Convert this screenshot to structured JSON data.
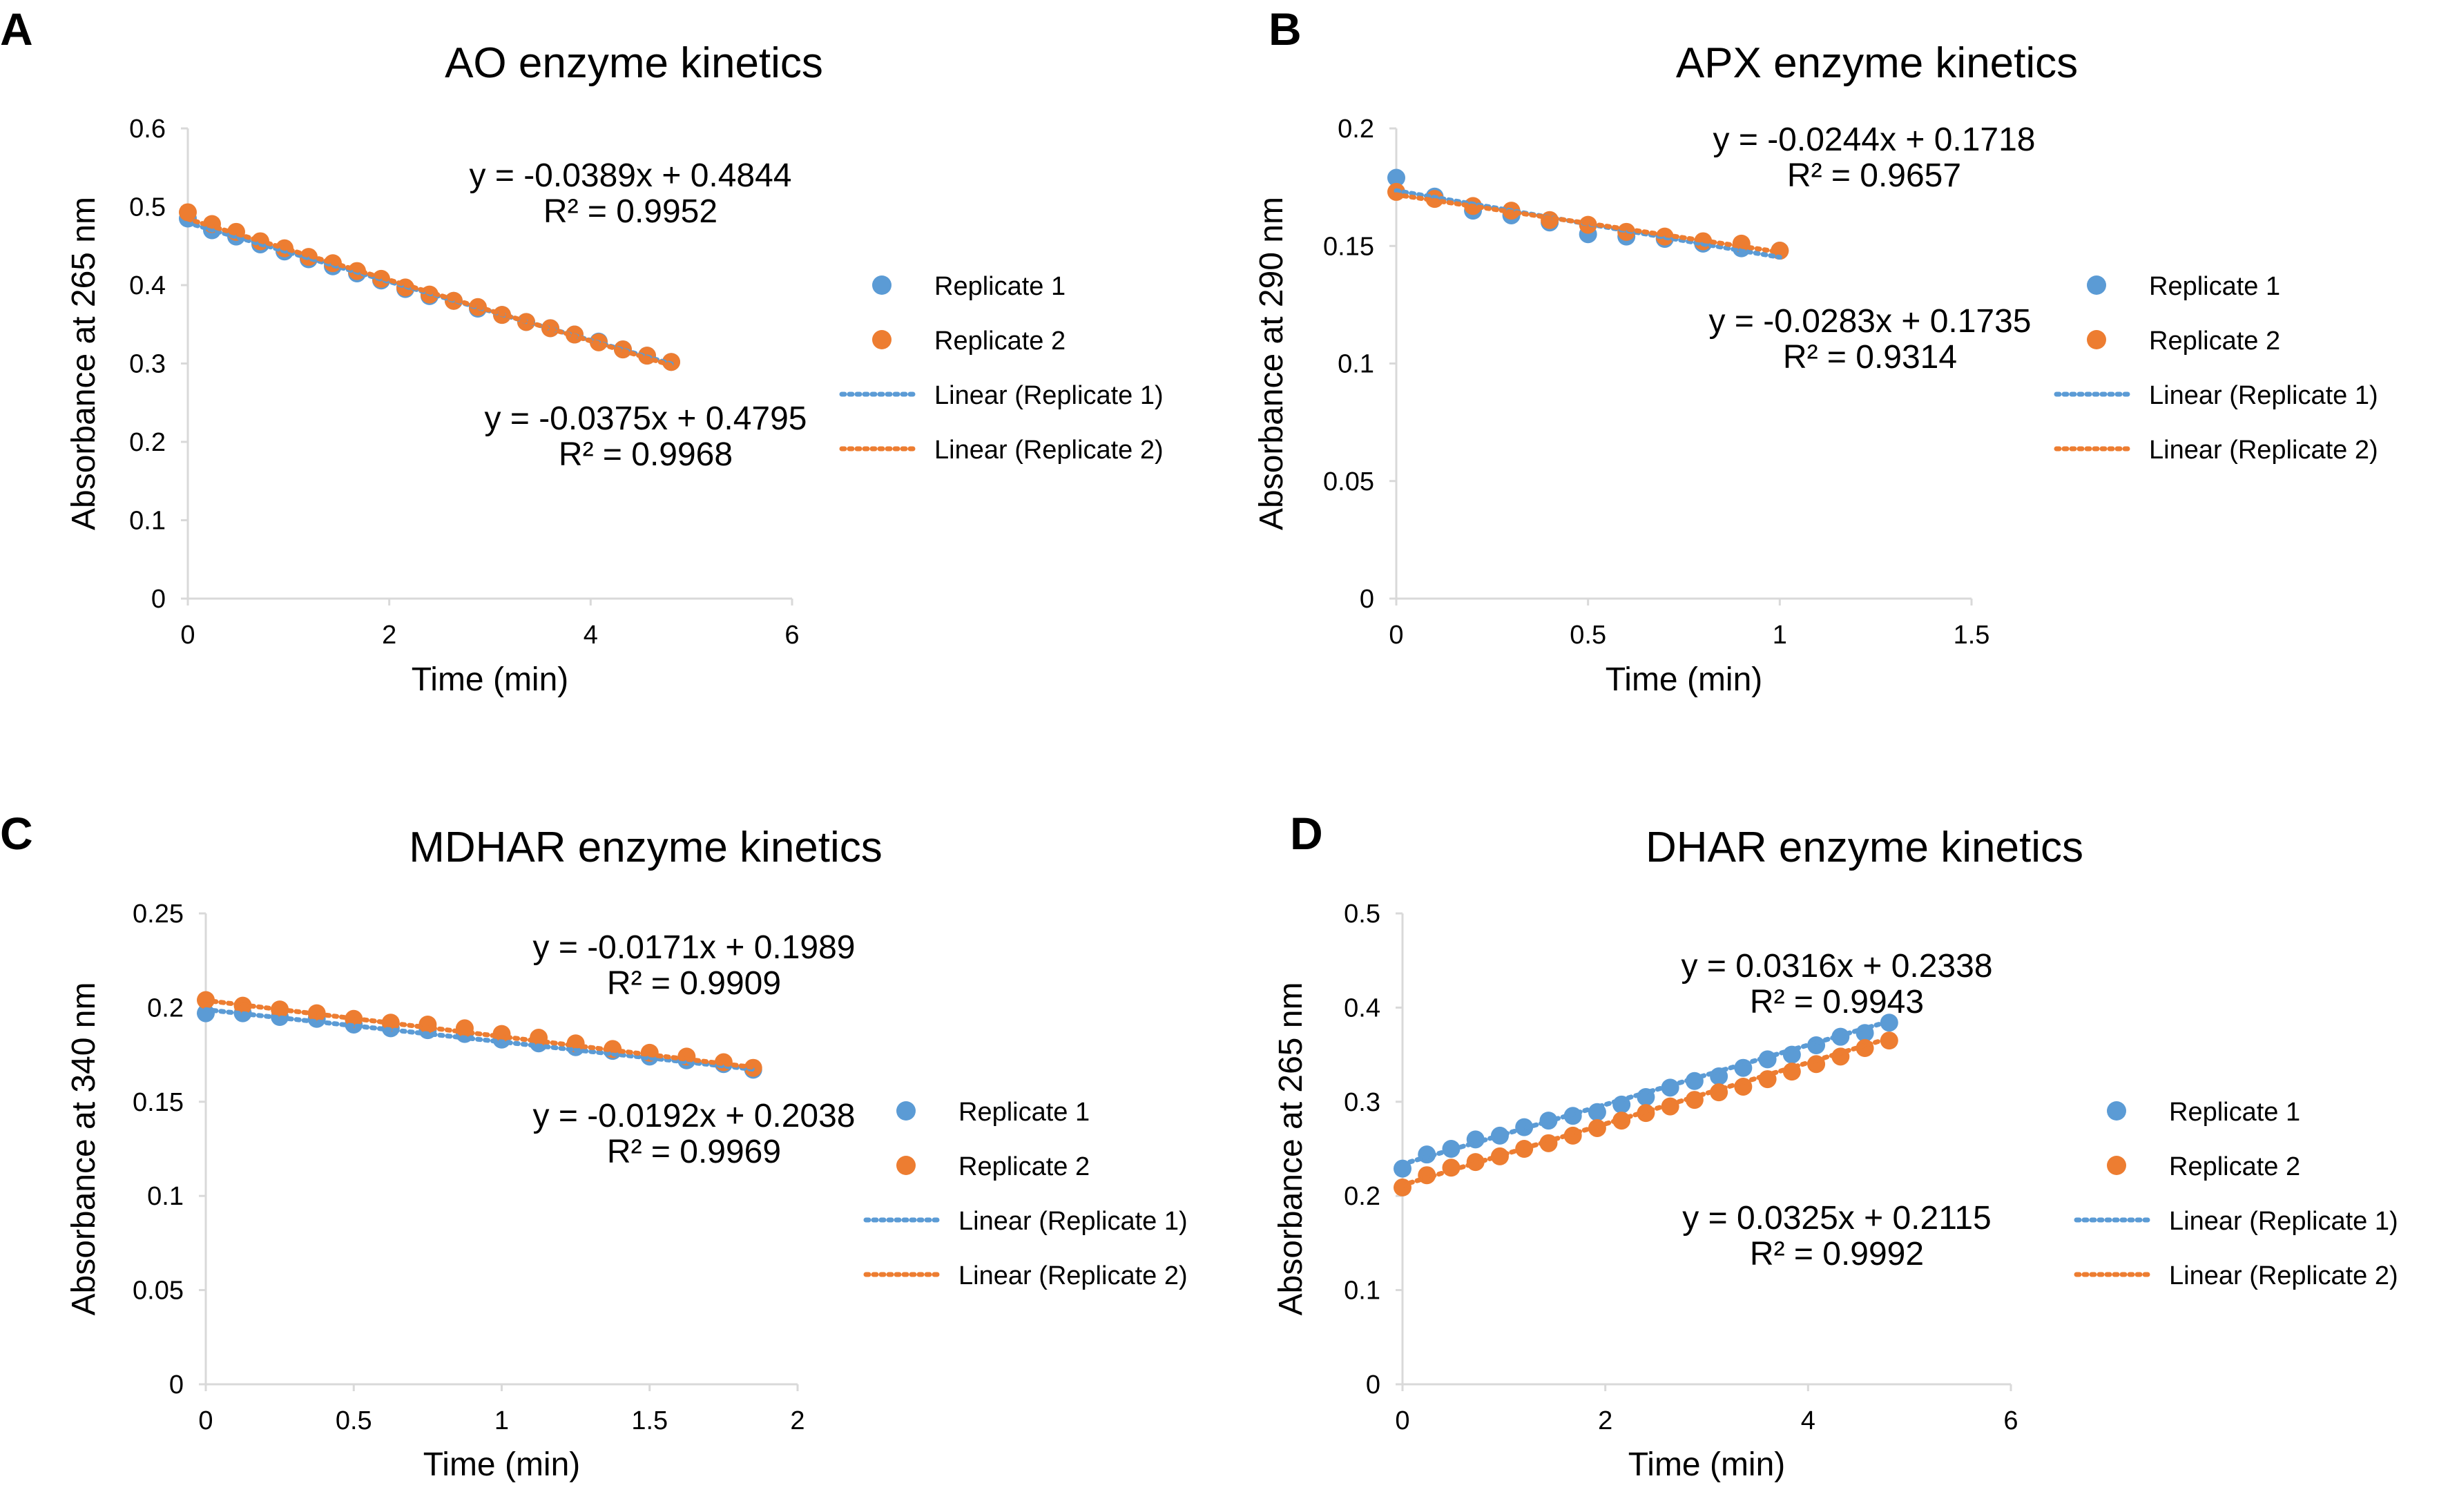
{
  "colors": {
    "replicate_1": "#5b9bd5",
    "replicate_2": "#ed7d31",
    "axis": "#d9d9d9"
  },
  "chart_data": [
    {
      "panel": "A",
      "type": "scatter",
      "title": "AO enzyme kinetics",
      "xlabel": "Time (min)",
      "ylabel": "Absorbance at 265 nm",
      "xlim": [
        0,
        6
      ],
      "ylim": [
        0,
        0.6
      ],
      "xticks": [
        "0",
        "2",
        "4",
        "6"
      ],
      "yticks": [
        "0",
        "0.1",
        "0.2",
        "0.3",
        "0.4",
        "0.5",
        "0.6"
      ],
      "grid": false,
      "legend_position": "right",
      "legend": [
        "Replicate 1",
        "Replicate 2",
        "Linear (Replicate 1)",
        "Linear (Replicate 2)"
      ],
      "series": [
        {
          "name": "Replicate 1",
          "trendline": "Linear (Replicate 1)",
          "slope": -0.0375,
          "intercept": 0.4795,
          "x": [
            0,
            0.24,
            0.48,
            0.72,
            0.96,
            1.2,
            1.44,
            1.68,
            1.92,
            2.16,
            2.4,
            2.64,
            2.88,
            3.12,
            3.36,
            3.6,
            3.84,
            4.08,
            4.32,
            4.56,
            4.8
          ],
          "y": [
            0.485,
            0.47,
            0.462,
            0.452,
            0.443,
            0.433,
            0.424,
            0.415,
            0.406,
            0.395,
            0.386,
            0.38,
            0.37,
            0.362,
            0.353,
            0.345,
            0.337,
            0.328,
            0.318,
            0.31,
            0.302
          ]
        },
        {
          "name": "Replicate 2",
          "trendline": "Linear (Replicate 2)",
          "slope": -0.0389,
          "intercept": 0.4844,
          "x": [
            0,
            0.24,
            0.48,
            0.72,
            0.96,
            1.2,
            1.44,
            1.68,
            1.92,
            2.16,
            2.4,
            2.64,
            2.88,
            3.12,
            3.36,
            3.6,
            3.84,
            4.08,
            4.32,
            4.56,
            4.8
          ],
          "y": [
            0.493,
            0.478,
            0.468,
            0.456,
            0.447,
            0.436,
            0.428,
            0.418,
            0.408,
            0.397,
            0.388,
            0.38,
            0.372,
            0.362,
            0.353,
            0.345,
            0.337,
            0.327,
            0.318,
            0.31,
            0.302
          ]
        }
      ],
      "equations": [
        {
          "line1": "y = -0.0389x + 0.4844",
          "line2": "R² = 0.9952"
        },
        {
          "line1": "y = -0.0375x + 0.4795",
          "line2": "R² = 0.9968"
        }
      ]
    },
    {
      "panel": "B",
      "type": "scatter",
      "title": "APX enzyme kinetics",
      "xlabel": "Time (min)",
      "ylabel": "Absorbance at 290 nm",
      "xlim": [
        0,
        1.5
      ],
      "ylim": [
        0,
        0.2
      ],
      "xticks": [
        "0",
        "0.5",
        "1",
        "1.5"
      ],
      "yticks": [
        "0",
        "0.05",
        "0.1",
        "0.15",
        "0.2"
      ],
      "grid": false,
      "legend_position": "right",
      "legend": [
        "Replicate 1",
        "Replicate 2",
        "Linear (Replicate 1)",
        "Linear (Replicate 2)"
      ],
      "series": [
        {
          "name": "Replicate 1",
          "trendline": "Linear (Replicate 1)",
          "slope": -0.0283,
          "intercept": 0.1735,
          "x": [
            0,
            0.1,
            0.2,
            0.3,
            0.4,
            0.5,
            0.6,
            0.7,
            0.8,
            0.9,
            1.0
          ],
          "y": [
            0.179,
            0.171,
            0.165,
            0.163,
            0.16,
            0.155,
            0.154,
            0.153,
            0.151,
            0.149,
            0.148
          ]
        },
        {
          "name": "Replicate 2",
          "trendline": "Linear (Replicate 2)",
          "slope": -0.0244,
          "intercept": 0.1718,
          "x": [
            0,
            0.1,
            0.2,
            0.3,
            0.4,
            0.5,
            0.6,
            0.7,
            0.8,
            0.9,
            1.0
          ],
          "y": [
            0.173,
            0.17,
            0.167,
            0.165,
            0.161,
            0.159,
            0.156,
            0.154,
            0.152,
            0.151,
            0.148
          ]
        }
      ],
      "equations": [
        {
          "line1": "y = -0.0244x + 0.1718",
          "line2": "R² = 0.9657"
        },
        {
          "line1": "y = -0.0283x + 0.1735",
          "line2": "R² = 0.9314"
        }
      ]
    },
    {
      "panel": "C",
      "type": "scatter",
      "title": "MDHAR enzyme kinetics",
      "xlabel": "Time (min)",
      "ylabel": "Absorbance at 340 nm",
      "xlim": [
        0,
        2
      ],
      "ylim": [
        0,
        0.25
      ],
      "xticks": [
        "0",
        "0.5",
        "1",
        "1.5",
        "2"
      ],
      "yticks": [
        "0",
        "0.05",
        "0.1",
        "0.15",
        "0.2",
        "0.25"
      ],
      "grid": false,
      "legend_position": "right",
      "legend": [
        "Replicate 1",
        "Replicate 2",
        "Linear (Replicate 1)",
        "Linear (Replicate 2)"
      ],
      "series": [
        {
          "name": "Replicate 1",
          "trendline": "Linear (Replicate 1)",
          "slope": -0.0171,
          "intercept": 0.1989,
          "x": [
            0,
            0.125,
            0.25,
            0.375,
            0.5,
            0.625,
            0.75,
            0.875,
            1.0,
            1.125,
            1.25,
            1.375,
            1.5,
            1.625,
            1.75,
            1.85
          ],
          "y": [
            0.197,
            0.197,
            0.195,
            0.194,
            0.191,
            0.189,
            0.188,
            0.186,
            0.183,
            0.181,
            0.179,
            0.177,
            0.174,
            0.172,
            0.17,
            0.167
          ]
        },
        {
          "name": "Replicate 2",
          "trendline": "Linear (Replicate 2)",
          "slope": -0.0192,
          "intercept": 0.2038,
          "x": [
            0,
            0.125,
            0.25,
            0.375,
            0.5,
            0.625,
            0.75,
            0.875,
            1.0,
            1.125,
            1.25,
            1.375,
            1.5,
            1.625,
            1.75,
            1.85
          ],
          "y": [
            0.204,
            0.201,
            0.199,
            0.197,
            0.194,
            0.192,
            0.191,
            0.189,
            0.186,
            0.184,
            0.181,
            0.178,
            0.176,
            0.174,
            0.171,
            0.168
          ]
        }
      ],
      "equations": [
        {
          "line1": "y = -0.0171x + 0.1989",
          "line2": "R² = 0.9909"
        },
        {
          "line1": "y = -0.0192x + 0.2038",
          "line2": "R² = 0.9969"
        }
      ]
    },
    {
      "panel": "D",
      "type": "scatter",
      "title": "DHAR enzyme kinetics",
      "xlabel": "Time (min)",
      "ylabel": "Absorbance at 265 nm",
      "xlim": [
        0,
        6
      ],
      "ylim": [
        0,
        0.5
      ],
      "xticks": [
        "0",
        "2",
        "4",
        "6"
      ],
      "yticks": [
        "0",
        "0.1",
        "0.2",
        "0.3",
        "0.4",
        "0.5"
      ],
      "grid": false,
      "legend_position": "right",
      "legend": [
        "Replicate 1",
        "Replicate 2",
        "Linear (Replicate 1)",
        "Linear (Replicate 2)"
      ],
      "series": [
        {
          "name": "Replicate 1",
          "trendline": "Linear (Replicate 1)",
          "slope": 0.0316,
          "intercept": 0.2338,
          "x": [
            0,
            0.24,
            0.48,
            0.72,
            0.96,
            1.2,
            1.44,
            1.68,
            1.92,
            2.16,
            2.4,
            2.64,
            2.88,
            3.12,
            3.36,
            3.6,
            3.84,
            4.08,
            4.32,
            4.56,
            4.8
          ],
          "y": [
            0.229,
            0.244,
            0.25,
            0.26,
            0.264,
            0.273,
            0.28,
            0.285,
            0.289,
            0.297,
            0.305,
            0.315,
            0.322,
            0.327,
            0.336,
            0.345,
            0.35,
            0.36,
            0.369,
            0.373,
            0.384
          ]
        },
        {
          "name": "Replicate 2",
          "trendline": "Linear (Replicate 2)",
          "slope": 0.0325,
          "intercept": 0.2115,
          "x": [
            0,
            0.24,
            0.48,
            0.72,
            0.96,
            1.2,
            1.44,
            1.68,
            1.92,
            2.16,
            2.4,
            2.64,
            2.88,
            3.12,
            3.36,
            3.6,
            3.84,
            4.08,
            4.32,
            4.56,
            4.8
          ],
          "y": [
            0.209,
            0.222,
            0.23,
            0.236,
            0.242,
            0.25,
            0.256,
            0.264,
            0.272,
            0.28,
            0.288,
            0.295,
            0.302,
            0.31,
            0.316,
            0.324,
            0.332,
            0.34,
            0.348,
            0.357,
            0.365
          ]
        }
      ],
      "equations": [
        {
          "line1": "y = 0.0316x + 0.2338",
          "line2": "R² = 0.9943"
        },
        {
          "line1": "y = 0.0325x + 0.2115",
          "line2": "R² = 0.9992"
        }
      ]
    }
  ]
}
